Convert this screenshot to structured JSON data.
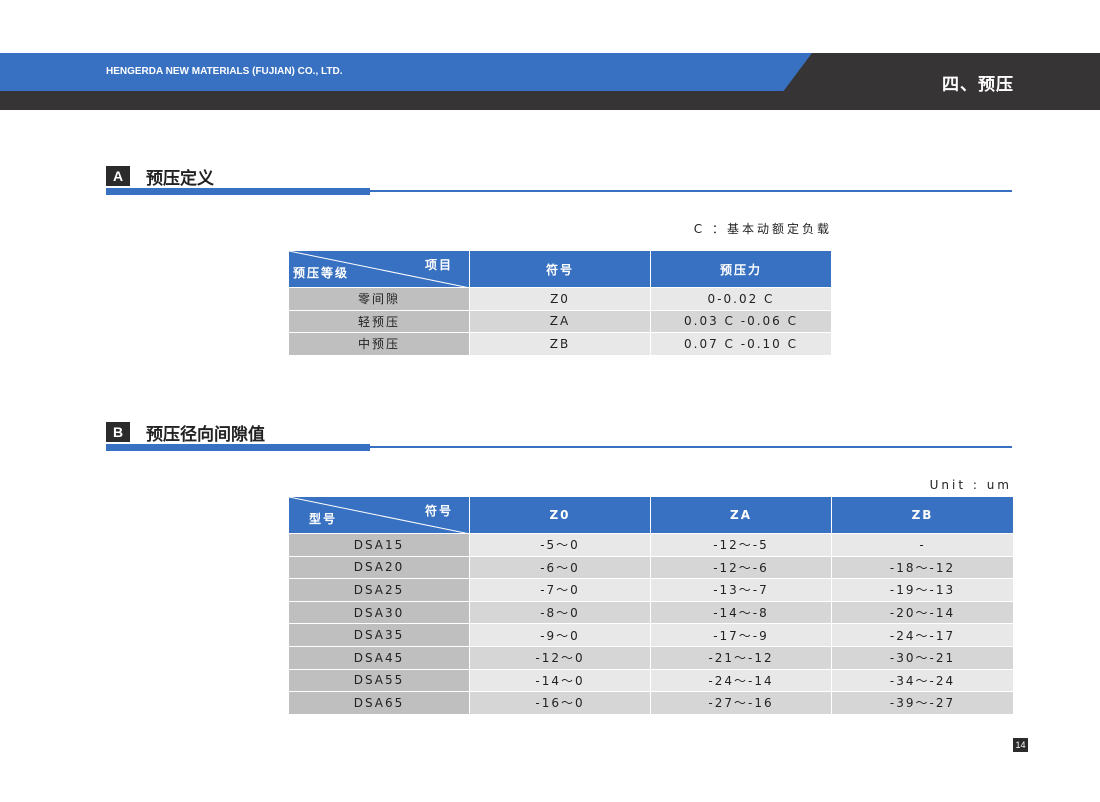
{
  "header": {
    "company": "HENGERDA NEW MATERIALS (FUJIAN) CO., LTD.",
    "chapter": "四、预压"
  },
  "section_a": {
    "badge": "A",
    "title": "预压定义",
    "note": "C ：基本动额定负载",
    "table": {
      "corner_top": "项目",
      "corner_bottom": "预压等级",
      "headers": [
        "符号",
        "预压力"
      ],
      "rows": [
        [
          "零间隙",
          "Z0",
          "0-0.02 C"
        ],
        [
          "轻预压",
          "ZA",
          "0.03 C -0.06 C"
        ],
        [
          "中预压",
          "ZB",
          "0.07 C -0.10 C"
        ]
      ]
    }
  },
  "section_b": {
    "badge": "B",
    "title": "预压径向间隙值",
    "note": "Unit : um",
    "table": {
      "corner_top": "符号",
      "corner_bottom": "型号",
      "headers": [
        "Z0",
        "ZA",
        "ZB"
      ],
      "rows": [
        [
          "DSA15",
          "-5～0",
          "-12～-5",
          "-"
        ],
        [
          "DSA20",
          "-6～0",
          "-12～-6",
          "-18～-12"
        ],
        [
          "DSA25",
          "-7～0",
          "-13～-7",
          "-19～-13"
        ],
        [
          "DSA30",
          "-8～0",
          "-14～-8",
          "-20～-14"
        ],
        [
          "DSA35",
          "-9～0",
          "-17～-9",
          "-24～-17"
        ],
        [
          "DSA45",
          "-12～0",
          "-21～-12",
          "-30～-21"
        ],
        [
          "DSA55",
          "-14～0",
          "-24～-14",
          "-34～-24"
        ],
        [
          "DSA65",
          "-16～0",
          "-27～-16",
          "-39～-27"
        ]
      ]
    }
  },
  "page_number": "14",
  "colors": {
    "accent": "#3871c1",
    "dark": "#363434"
  }
}
